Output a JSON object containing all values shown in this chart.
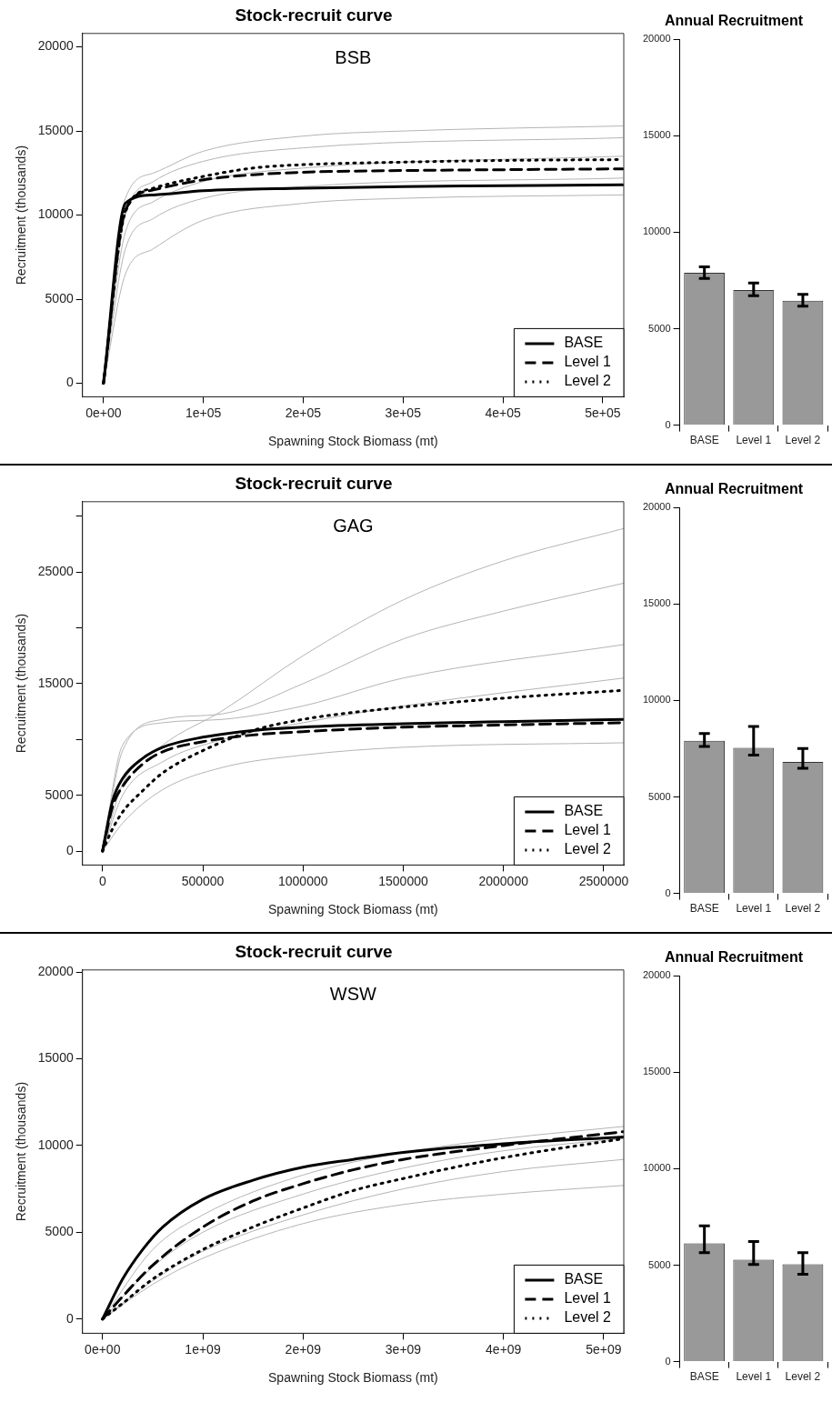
{
  "chart_data": [
    {
      "type": "line",
      "title": "Stock-recruit curve",
      "xlabel": "Spawning Stock Biomass (mt)",
      "ylabel": "Recruitment (thousands)",
      "annotations": [
        "BSB"
      ],
      "legend": "bottom right",
      "xlim": [
        -21000,
        521000
      ],
      "ylim": [
        -800,
        20800
      ],
      "xticks": [
        {
          "value": 0,
          "label": "0e+00"
        },
        {
          "value": 100000,
          "label": "1e+05"
        },
        {
          "value": 200000,
          "label": "2e+05"
        },
        {
          "value": 300000,
          "label": "3e+05"
        },
        {
          "value": 400000,
          "label": "4e+05"
        },
        {
          "value": 500000,
          "label": "5e+05"
        }
      ],
      "yticks": [
        0,
        5000,
        10000,
        15000,
        20000
      ],
      "series": [
        {
          "color": "#b4b4b4",
          "x": [
            0,
            22000,
            50000,
            100000,
            200000,
            300000,
            520000
          ],
          "values": [
            0,
            11000,
            12500,
            13800,
            14700,
            15000,
            15300
          ]
        },
        {
          "color": "#b4b4b4",
          "x": [
            0,
            22000,
            50000,
            100000,
            200000,
            520000
          ],
          "values": [
            0,
            10000,
            12000,
            13200,
            14000,
            14600
          ]
        },
        {
          "color": "#b4b4b4",
          "x": [
            0,
            22000,
            50000,
            100000,
            200000,
            520000
          ],
          "values": [
            0,
            9000,
            10800,
            12000,
            12800,
            13500
          ]
        },
        {
          "color": "#b4b4b4",
          "x": [
            0,
            22000,
            50000,
            100000,
            200000,
            520000
          ],
          "values": [
            0,
            8000,
            9800,
            11000,
            11700,
            12200
          ]
        },
        {
          "color": "#b4b4b4",
          "x": [
            0,
            22000,
            50000,
            100000,
            200000,
            300000,
            520000
          ],
          "values": [
            0,
            6500,
            8000,
            9700,
            10700,
            11000,
            11200
          ]
        },
        {
          "name": "BASE",
          "color": "#000000",
          "line_style": "solid",
          "x": [
            0,
            22000,
            50000,
            100000,
            200000,
            300000,
            400000,
            520000
          ],
          "values": [
            0,
            10700,
            11200,
            11450,
            11600,
            11700,
            11750,
            11800
          ]
        },
        {
          "name": "Level 1",
          "color": "#000000",
          "line_style": "dashed",
          "x": [
            0,
            22000,
            50000,
            100000,
            150000,
            200000,
            300000,
            400000,
            520000
          ],
          "values": [
            0,
            10300,
            11500,
            12100,
            12400,
            12550,
            12650,
            12700,
            12750
          ]
        },
        {
          "name": "Level 2",
          "color": "#000000",
          "line_style": "dotted",
          "x": [
            0,
            22000,
            50000,
            100000,
            150000,
            200000,
            300000,
            400000,
            520000
          ],
          "values": [
            0,
            10200,
            11600,
            12300,
            12800,
            13000,
            13150,
            13250,
            13300
          ]
        }
      ]
    },
    {
      "type": "bar",
      "title": "Annual Recruitment",
      "categories": [
        "BASE",
        "Level 1",
        "Level 2"
      ],
      "values": [
        7900,
        7000,
        6450
      ],
      "color": "#999999",
      "errors": [
        [
          7600,
          8200
        ],
        [
          6710,
          7370
        ],
        [
          6170,
          6780
        ]
      ],
      "ylim": [
        0,
        20000
      ],
      "yticks": [
        0,
        5000,
        10000,
        15000,
        20000
      ]
    },
    {
      "type": "line",
      "title": "Stock-recruit curve",
      "xlabel": "Spawning Stock Biomass (mt)",
      "ylabel": "Recruitment (thousands)",
      "annotations": [
        "GAG"
      ],
      "legend": "bottom right",
      "xlim": [
        -100000,
        2600000
      ],
      "ylim": [
        -1250,
        31300
      ],
      "xticks": [
        0,
        500000,
        1000000,
        1500000,
        2000000,
        2500000
      ],
      "yticks": [
        0,
        5000,
        {
          "value": 10000,
          "label": null
        },
        15000,
        {
          "value": 20000,
          "label": null
        },
        25000,
        {
          "value": 30000,
          "label": null
        }
      ],
      "series": [
        {
          "color": "#b4b4b4",
          "x": [
            0,
            100000,
            300000,
            600000,
            1000000,
            1500000,
            2000000,
            2600000
          ],
          "values": [
            0,
            6000,
            9500,
            12600,
            17500,
            22500,
            26000,
            28900
          ]
        },
        {
          "color": "#b4b4b4",
          "x": [
            0,
            100000,
            300000,
            600000,
            1000000,
            1500000,
            2000000,
            2600000
          ],
          "values": [
            0,
            9000,
            11800,
            12300,
            15000,
            19000,
            21500,
            24000
          ]
        },
        {
          "color": "#b4b4b4",
          "x": [
            0,
            100000,
            300000,
            600000,
            1000000,
            1500000,
            2600000
          ],
          "values": [
            0,
            9500,
            11500,
            11800,
            13000,
            15500,
            18500
          ]
        },
        {
          "color": "#b4b4b4",
          "x": [
            0,
            100000,
            300000,
            600000,
            1000000,
            1500000,
            2600000
          ],
          "values": [
            0,
            5000,
            8000,
            10000,
            11500,
            13000,
            15500
          ]
        },
        {
          "color": "#b4b4b4",
          "x": [
            0,
            100000,
            300000,
            600000,
            1000000,
            1500000,
            2600000
          ],
          "values": [
            0,
            2500,
            5500,
            7500,
            8600,
            9300,
            9700
          ]
        },
        {
          "name": "BASE",
          "color": "#000000",
          "line_style": "solid",
          "x": [
            0,
            50000,
            100000,
            200000,
            300000,
            500000,
            750000,
            1000000,
            1500000,
            2000000,
            2600000
          ],
          "values": [
            0,
            4500,
            6500,
            8300,
            9300,
            10200,
            10800,
            11100,
            11400,
            11600,
            11800
          ]
        },
        {
          "name": "Level 1",
          "color": "#000000",
          "line_style": "dashed",
          "x": [
            0,
            50000,
            100000,
            200000,
            300000,
            500000,
            750000,
            1000000,
            1500000,
            2000000,
            2600000
          ],
          "values": [
            0,
            4000,
            5800,
            7800,
            8900,
            9800,
            10400,
            10700,
            11100,
            11300,
            11500
          ]
        },
        {
          "name": "Level 2",
          "color": "#000000",
          "line_style": "dotted",
          "x": [
            0,
            50000,
            100000,
            200000,
            300000,
            500000,
            750000,
            1000000,
            1500000,
            2000000,
            2600000
          ],
          "values": [
            0,
            2000,
            3500,
            5400,
            7000,
            9000,
            10800,
            11800,
            12900,
            13700,
            14400
          ]
        }
      ]
    },
    {
      "type": "bar",
      "title": "Annual Recruitment",
      "categories": [
        "BASE",
        "Level 1",
        "Level 2"
      ],
      "values": [
        7910,
        7550,
        6820
      ],
      "color": "#999999",
      "errors": [
        [
          7620,
          8290
        ],
        [
          7170,
          8650
        ],
        [
          6480,
          7510
        ]
      ],
      "ylim": [
        0,
        20000
      ],
      "yticks": [
        0,
        5000,
        10000,
        15000,
        20000
      ]
    },
    {
      "type": "line",
      "title": "Stock-recruit curve",
      "xlabel": "Spawning Stock Biomass (mt)",
      "ylabel": "Recruitment (thousands)",
      "annotations": [
        "WSW"
      ],
      "legend": "bottom right",
      "xlim": [
        -200000000,
        5200000000
      ],
      "ylim": [
        -820,
        20120
      ],
      "xticks": [
        {
          "value": 0,
          "label": "0e+00"
        },
        {
          "value": 1000000000,
          "label": "1e+09"
        },
        {
          "value": 2000000000,
          "label": "2e+09"
        },
        {
          "value": 3000000000,
          "label": "3e+09"
        },
        {
          "value": 4000000000,
          "label": "4e+09"
        },
        {
          "value": 5000000000,
          "label": "5e+09"
        }
      ],
      "yticks": [
        0,
        5000,
        10000,
        15000,
        20000
      ],
      "series": [
        {
          "color": "#b4b4b4",
          "x": [
            0,
            500000000,
            1000000000,
            2000000000,
            3000000000,
            4000000000,
            5200000000
          ],
          "values": [
            0,
            4000,
            6000,
            8300,
            9600,
            10400,
            11100
          ]
        },
        {
          "color": "#b4b4b4",
          "x": [
            0,
            500000000,
            1000000000,
            2000000000,
            3000000000,
            4000000000,
            5200000000
          ],
          "values": [
            0,
            3000,
            5000,
            7200,
            8700,
            9700,
            10400
          ]
        },
        {
          "color": "#b4b4b4",
          "x": [
            0,
            500000000,
            1000000000,
            2000000000,
            3000000000,
            4000000000,
            5200000000
          ],
          "values": [
            0,
            2200,
            3900,
            6000,
            7500,
            8500,
            9200
          ]
        },
        {
          "color": "#b4b4b4",
          "x": [
            0,
            500000000,
            1000000000,
            2000000000,
            3000000000,
            4000000000,
            5200000000
          ],
          "values": [
            0,
            2000,
            3500,
            5500,
            6600,
            7200,
            7700
          ]
        },
        {
          "name": "BASE",
          "color": "#000000",
          "line_style": "solid",
          "x": [
            0,
            200000000,
            400000000,
            600000000,
            1000000000,
            1500000000,
            2000000000,
            2500000000,
            3000000000,
            4000000000,
            5200000000
          ],
          "values": [
            0,
            2300,
            4000,
            5300,
            6900,
            8000,
            8750,
            9200,
            9600,
            10100,
            10500
          ]
        },
        {
          "name": "Level 1",
          "color": "#000000",
          "line_style": "dashed",
          "x": [
            0,
            200000000,
            500000000,
            1000000000,
            1500000000,
            2000000000,
            2500000000,
            3000000000,
            4000000000,
            5200000000
          ],
          "values": [
            0,
            1300,
            3100,
            5300,
            6800,
            7800,
            8600,
            9200,
            10000,
            10800
          ]
        },
        {
          "name": "Level 2",
          "color": "#000000",
          "line_style": "dotted",
          "x": [
            0,
            200000000,
            500000000,
            1000000000,
            1500000000,
            2000000000,
            2500000000,
            3000000000,
            4000000000,
            5200000000
          ],
          "values": [
            0,
            900,
            2300,
            4000,
            5300,
            6400,
            7400,
            8100,
            9300,
            10400
          ]
        }
      ]
    },
    {
      "type": "bar",
      "title": "Annual Recruitment",
      "categories": [
        "BASE",
        "Level 1",
        "Level 2"
      ],
      "values": [
        6130,
        5280,
        5050
      ],
      "color": "#999999",
      "errors": [
        [
          5650,
          7040
        ],
        [
          5030,
          6220
        ],
        [
          4530,
          5650
        ]
      ],
      "ylim": [
        0,
        20000
      ],
      "yticks": [
        0,
        5000,
        10000,
        15000,
        20000
      ]
    }
  ]
}
